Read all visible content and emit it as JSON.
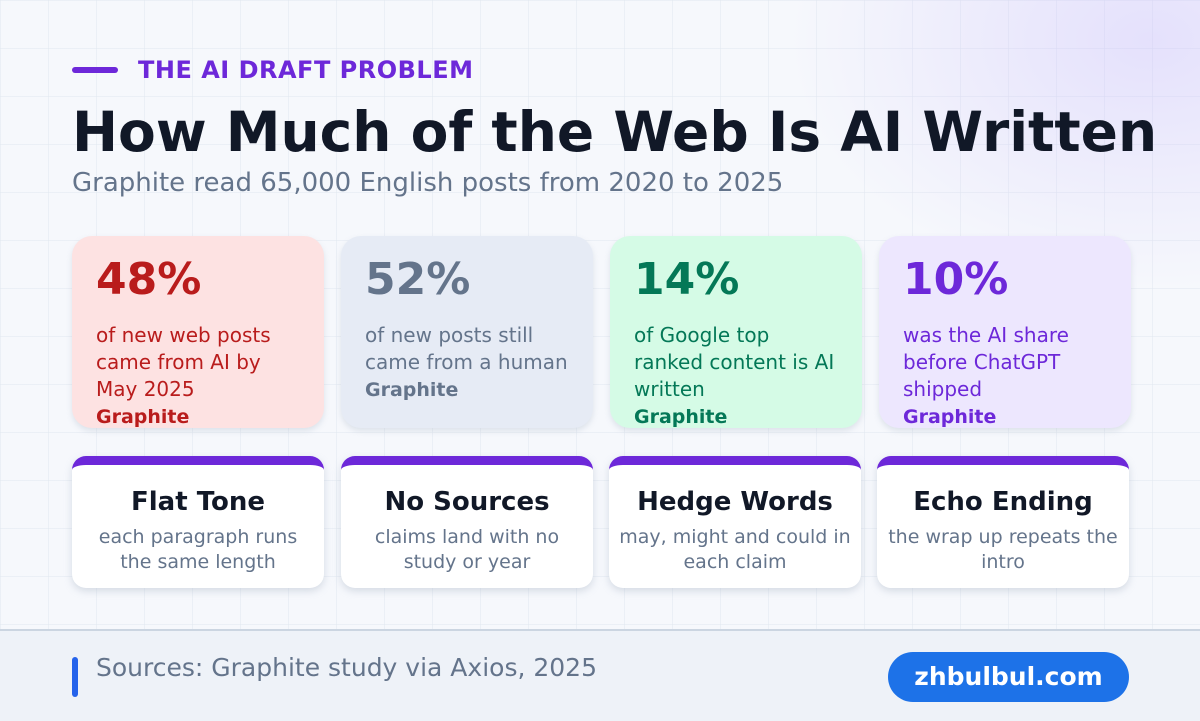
{
  "eyebrow": "THE AI DRAFT PROBLEM",
  "title": "How Much of the Web Is AI Written",
  "subtitle": "Graphite read 65,000 English posts from 2020 to 2025",
  "stats": [
    {
      "value": "48%",
      "desc": "of new web posts came from AI by May 2025",
      "source": "Graphite",
      "color": "#b91c1c"
    },
    {
      "value": "52%",
      "desc": "of new posts still came from a human",
      "source": "Graphite",
      "color": "#64748b"
    },
    {
      "value": "14%",
      "desc": "of Google top ranked content is AI written",
      "source": "Graphite",
      "color": "#047857"
    },
    {
      "value": "10%",
      "desc": "was the AI share before ChatGPT shipped",
      "source": "Graphite",
      "color": "#6d28d9"
    }
  ],
  "signs": [
    {
      "title": "Flat Tone",
      "desc": "each paragraph runs the same length"
    },
    {
      "title": "No Sources",
      "desc": "claims land with no study or year"
    },
    {
      "title": "Hedge Words",
      "desc": "may, might and could in each claim"
    },
    {
      "title": "Echo Ending",
      "desc": "the wrap up repeats the intro"
    }
  ],
  "footer": {
    "sources": "Sources: Graphite study via Axios, 2025",
    "site": "zhbulbul.com"
  }
}
